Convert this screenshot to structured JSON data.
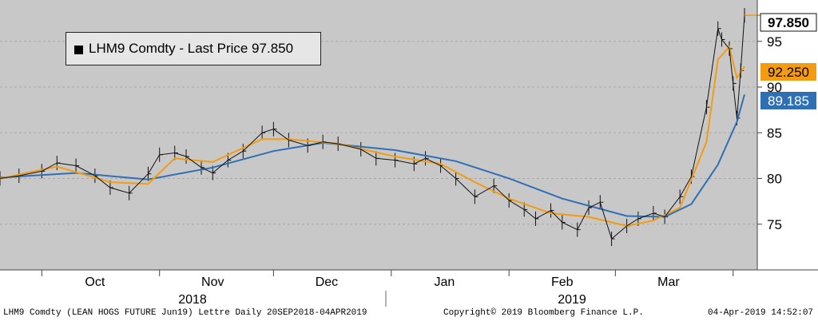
{
  "legend": {
    "label": "LHM9 Comdty - Last Price 97.850"
  },
  "badges": {
    "last": "97.850",
    "orange": "92.250",
    "blue": "89.185"
  },
  "footer": {
    "left": "LHM9 Comdty (LEAN HOGS FUTURE  Jun19) Lettre  Daily 20SEP2018-04APR2019",
    "center": "Copyright© 2019 Bloomberg Finance L.P.",
    "right": "04-Apr-2019 14:52:07"
  },
  "colors": {
    "plot_bg": "#c8c8c8",
    "axis_bg": "#ffffff",
    "price": "#111111",
    "ma_short": "#f39c12",
    "ma_long": "#2f6fb3",
    "badge_last": "#ffffff"
  },
  "chart_data": {
    "type": "line",
    "y_ticks": [
      75,
      80,
      85,
      90,
      95
    ],
    "ylim": [
      70,
      99
    ],
    "month_labels": [
      "Oct",
      "Nov",
      "Dec",
      "Jan",
      "Feb",
      "Mar"
    ],
    "year_labels": [
      "2018",
      "2019"
    ],
    "price_points": [
      [
        "2018-09-20",
        80.0
      ],
      [
        "2018-09-25",
        80.3
      ],
      [
        "2018-10-01",
        80.8
      ],
      [
        "2018-10-05",
        81.7
      ],
      [
        "2018-10-10",
        81.4
      ],
      [
        "2018-10-15",
        80.3
      ],
      [
        "2018-10-19",
        79.0
      ],
      [
        "2018-10-24",
        78.4
      ],
      [
        "2018-10-29",
        80.5
      ],
      [
        "2018-11-01",
        82.6
      ],
      [
        "2018-11-05",
        82.8
      ],
      [
        "2018-11-08",
        82.4
      ],
      [
        "2018-11-12",
        81.2
      ],
      [
        "2018-11-15",
        80.6
      ],
      [
        "2018-11-19",
        82.0
      ],
      [
        "2018-11-23",
        83.0
      ],
      [
        "2018-11-28",
        85.0
      ],
      [
        "2018-12-01",
        85.4
      ],
      [
        "2018-12-05",
        84.2
      ],
      [
        "2018-12-10",
        83.6
      ],
      [
        "2018-12-14",
        84.0
      ],
      [
        "2018-12-18",
        83.8
      ],
      [
        "2018-12-24",
        83.2
      ],
      [
        "2018-12-28",
        82.2
      ],
      [
        "2019-01-02",
        82.0
      ],
      [
        "2019-01-07",
        81.6
      ],
      [
        "2019-01-10",
        82.2
      ],
      [
        "2019-01-14",
        81.4
      ],
      [
        "2019-01-18",
        80.0
      ],
      [
        "2019-01-23",
        78.0
      ],
      [
        "2019-01-28",
        79.2
      ],
      [
        "2019-02-01",
        77.6
      ],
      [
        "2019-02-05",
        76.6
      ],
      [
        "2019-02-08",
        75.6
      ],
      [
        "2019-02-12",
        76.5
      ],
      [
        "2019-02-15",
        75.2
      ],
      [
        "2019-02-19",
        74.4
      ],
      [
        "2019-02-22",
        76.8
      ],
      [
        "2019-02-25",
        77.4
      ],
      [
        "2019-02-28",
        73.4
      ],
      [
        "2019-03-04",
        74.8
      ],
      [
        "2019-03-07",
        75.6
      ],
      [
        "2019-03-11",
        76.2
      ],
      [
        "2019-03-14",
        75.8
      ],
      [
        "2019-03-18",
        78.0
      ],
      [
        "2019-03-21",
        80.2
      ],
      [
        "2019-03-25",
        87.8
      ],
      [
        "2019-03-28",
        96.4
      ],
      [
        "2019-03-29",
        95.2
      ],
      [
        "2019-03-31",
        94.2
      ],
      [
        "2019-04-01",
        90.4
      ],
      [
        "2019-04-02",
        86.6
      ],
      [
        "2019-04-03",
        91.8
      ],
      [
        "2019-04-04",
        97.85
      ]
    ],
    "ma_short_points": [
      [
        "2018-09-20",
        80.0
      ],
      [
        "2018-10-05",
        81.3
      ],
      [
        "2018-10-19",
        79.6
      ],
      [
        "2018-10-29",
        79.4
      ],
      [
        "2018-11-05",
        82.2
      ],
      [
        "2018-11-15",
        81.8
      ],
      [
        "2018-11-28",
        84.3
      ],
      [
        "2018-12-05",
        84.3
      ],
      [
        "2018-12-18",
        83.8
      ],
      [
        "2019-01-02",
        82.4
      ],
      [
        "2019-01-14",
        81.6
      ],
      [
        "2019-01-23",
        79.6
      ],
      [
        "2019-02-01",
        77.8
      ],
      [
        "2019-02-12",
        76.2
      ],
      [
        "2019-02-22",
        75.8
      ],
      [
        "2019-03-04",
        74.8
      ],
      [
        "2019-03-11",
        75.4
      ],
      [
        "2019-03-18",
        76.8
      ],
      [
        "2019-03-25",
        84.0
      ],
      [
        "2019-03-28",
        93.0
      ],
      [
        "2019-03-31",
        94.4
      ],
      [
        "2019-04-02",
        91.0
      ],
      [
        "2019-04-04",
        92.25
      ]
    ],
    "ma_long_points": [
      [
        "2018-09-20",
        80.1
      ],
      [
        "2018-10-10",
        80.6
      ],
      [
        "2018-10-29",
        79.9
      ],
      [
        "2018-11-15",
        81.2
      ],
      [
        "2018-12-01",
        83.0
      ],
      [
        "2018-12-14",
        83.9
      ],
      [
        "2019-01-02",
        83.1
      ],
      [
        "2019-01-18",
        81.9
      ],
      [
        "2019-02-01",
        80.0
      ],
      [
        "2019-02-15",
        77.8
      ],
      [
        "2019-03-04",
        75.9
      ],
      [
        "2019-03-14",
        75.8
      ],
      [
        "2019-03-21",
        77.2
      ],
      [
        "2019-03-28",
        81.5
      ],
      [
        "2019-04-02",
        86.2
      ],
      [
        "2019-04-04",
        89.185
      ]
    ]
  }
}
